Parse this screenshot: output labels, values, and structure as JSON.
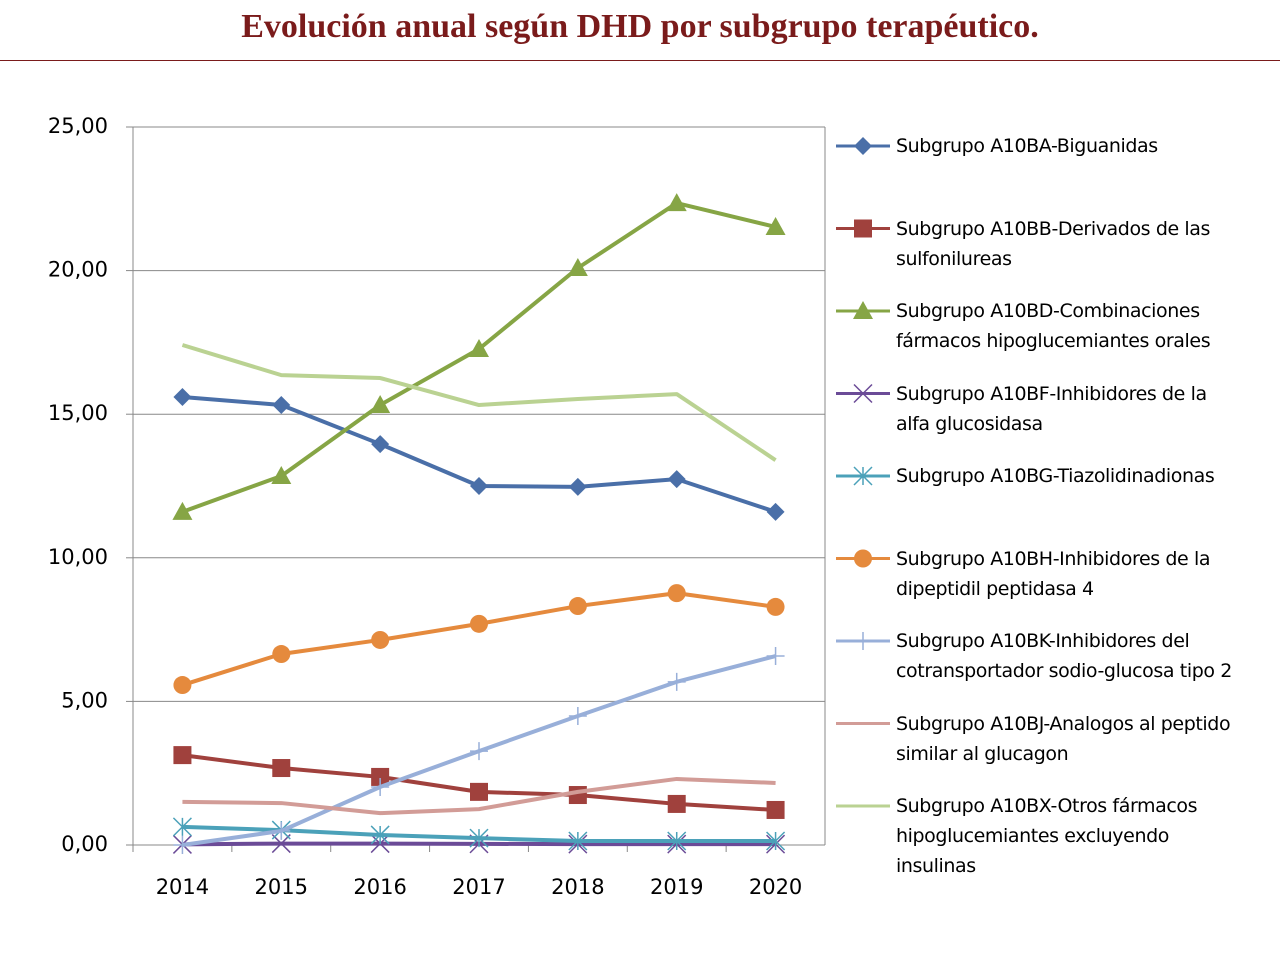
{
  "chart_data": {
    "type": "line",
    "title": "Evolución anual según DHD por subgrupo terapéutico.",
    "categories": [
      "2014",
      "2015",
      "2016",
      "2017",
      "2018",
      "2019",
      "2020"
    ],
    "ylim": [
      0,
      25
    ],
    "yticks": [
      {
        "value": 0,
        "label": "0,00"
      },
      {
        "value": 5,
        "label": "5,00"
      },
      {
        "value": 10,
        "label": "10,00"
      },
      {
        "value": 15,
        "label": "15,00"
      },
      {
        "value": 20,
        "label": "20,00"
      },
      {
        "value": 25,
        "label": "25,00"
      }
    ],
    "grid": true,
    "legend": "right",
    "series": [
      {
        "name": "Subgrupo A10BA-Biguanidas",
        "color": "#4a6fa8",
        "marker": "diamond",
        "values": [
          15.6,
          15.32,
          13.96,
          12.5,
          12.47,
          12.74,
          11.6
        ]
      },
      {
        "name": "Subgrupo A10BB-Derivados de las sulfonilureas",
        "color": "#a0413d",
        "marker": "square",
        "values": [
          3.13,
          2.68,
          2.37,
          1.85,
          1.74,
          1.43,
          1.22
        ]
      },
      {
        "name": "Subgrupo A10BD-Combinaciones fármacos hipoglucemiantes orales",
        "color": "#86a545",
        "marker": "triangle",
        "values": [
          11.6,
          12.85,
          15.32,
          17.27,
          20.09,
          22.35,
          21.52
        ]
      },
      {
        "name": "Subgrupo A10BF-Inhibidores de la alfa glucosidasa",
        "color": "#6b4b97",
        "marker": "x",
        "values": [
          0.02,
          0.05,
          0.05,
          0.04,
          0.03,
          0.03,
          0.03
        ]
      },
      {
        "name": "Subgrupo A10BG-Tiazolidinadionas",
        "color": "#4ba1b9",
        "marker": "asterisk",
        "values": [
          0.63,
          0.52,
          0.35,
          0.24,
          0.14,
          0.14,
          0.14
        ]
      },
      {
        "name": "Subgrupo A10BH-Inhibidores de la dipeptidil peptidasa 4",
        "color": "#e58a3d",
        "marker": "circle",
        "values": [
          5.57,
          6.65,
          7.14,
          7.7,
          8.32,
          8.77,
          8.29
        ]
      },
      {
        "name": "Subgrupo A10BK-Inhibidores del cotransportador sodio-glucosa tipo 2",
        "color": "#98afd9",
        "marker": "plus",
        "values": [
          0.0,
          0.49,
          2.02,
          3.27,
          4.49,
          5.68,
          6.58
        ]
      },
      {
        "name": "Subgrupo A10BJ-Analogos al peptido similar al glucagon",
        "color": "#d29c97",
        "marker": "none",
        "values": [
          1.5,
          1.46,
          1.11,
          1.25,
          1.85,
          2.3,
          2.16
        ]
      },
      {
        "name": "Subgrupo A10BX-Otros fármacos hipoglucemiantes excluyendo insulinas",
        "color": "#bad292",
        "marker": "none",
        "values": [
          17.41,
          16.36,
          16.26,
          15.32,
          15.53,
          15.7,
          13.4
        ]
      }
    ]
  }
}
